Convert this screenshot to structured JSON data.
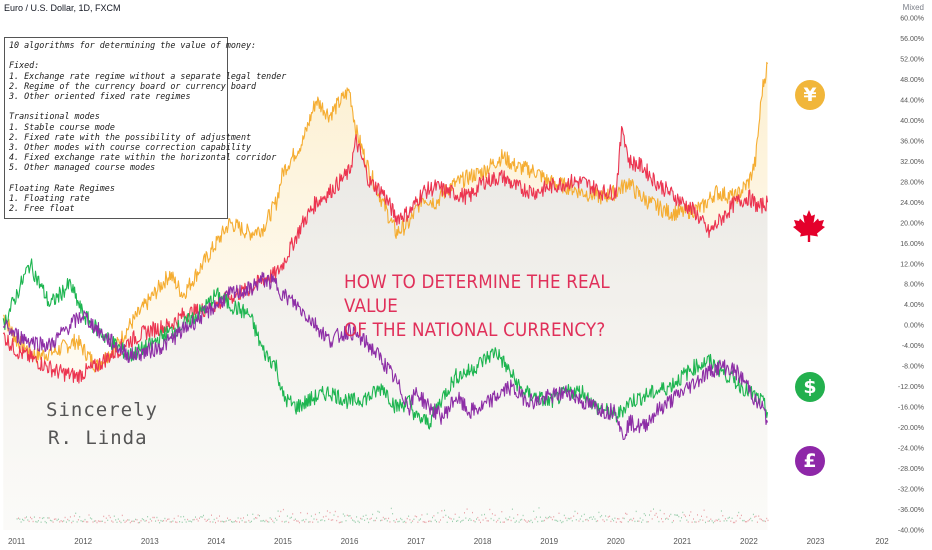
{
  "header": {
    "symbol_title": "Euro / U.S. Dollar, 1D, FXCM",
    "scale_mode": "Mixed"
  },
  "info_box": {
    "lines": [
      "10 algorithms for determining the value of money:",
      "",
      "Fixed:",
      "1. Exchange rate regime without a separate legal tender",
      "2. Regime of the currency board or currency board",
      "3. Other oriented fixed rate regimes",
      "",
      "Transitional modes",
      "1. Stable course mode",
      "2. Fixed rate with the possibility of adjustment",
      "3. Other modes with course correction capability",
      "4. Fixed exchange rate within the horizontal corridor",
      "5. Other managed course modes",
      "",
      "Floating Rate Regimes",
      "1. Floating rate",
      "2. Free float"
    ]
  },
  "headline": {
    "line1": "HOW TO DETERMINE THE REAL VALUE",
    "line2": "OF THE NATIONAL CURRENCY?"
  },
  "signature": {
    "line1": "Sincerely",
    "line2": "R. Linda"
  },
  "icons": {
    "yen": {
      "name": "yen-icon",
      "glyph": "¥",
      "color": "#f1b63a"
    },
    "cad": {
      "name": "maple-leaf-icon",
      "color": "#e4002b"
    },
    "usd": {
      "name": "dollar-icon",
      "glyph": "$",
      "color": "#23b04e"
    },
    "gbp": {
      "name": "pound-icon",
      "glyph": "£",
      "color": "#8e27a8"
    }
  },
  "chart_data": {
    "type": "line",
    "title": "Euro / U.S. Dollar, 1D, FXCM",
    "ylabel": "",
    "xlabel": "",
    "y_unit": "%",
    "ylim": [
      -40,
      60
    ],
    "yticks": [
      "60.00%",
      "56.00%",
      "52.00%",
      "48.00%",
      "44.00%",
      "40.00%",
      "36.00%",
      "32.00%",
      "28.00%",
      "24.00%",
      "20.00%",
      "16.00%",
      "12.00%",
      "8.00%",
      "4.00%",
      "0.00%",
      "-4.00%",
      "-8.00%",
      "-12.00%",
      "-16.00%",
      "-20.00%",
      "-24.00%",
      "-28.00%",
      "-32.00%",
      "-36.00%",
      "-40.00%"
    ],
    "xticks": [
      "2011",
      "2012",
      "2013",
      "2014",
      "2015",
      "2016",
      "2017",
      "2018",
      "2019",
      "2020",
      "2021",
      "2022",
      "2023",
      "202"
    ],
    "xlim": [
      2010.75,
      2024.3
    ],
    "grid": false,
    "series": [
      {
        "color": "#f5ad32",
        "x": [
          2010.8,
          2011.0,
          2011.3,
          2011.6,
          2011.9,
          2012.2,
          2012.5,
          2012.7,
          2013.0,
          2013.3,
          2013.5,
          2013.8,
          2014.0,
          2014.2,
          2014.5,
          2014.7,
          2014.9,
          2015.0,
          2015.3,
          2015.5,
          2015.7,
          2016.0,
          2016.1,
          2016.3,
          2016.5,
          2016.7,
          2016.9,
          2017.1,
          2017.3,
          2017.5,
          2017.8,
          2018.0,
          2018.3,
          2018.5,
          2018.8,
          2019.0,
          2019.3,
          2019.5,
          2019.8,
          2020.0,
          2020.2,
          2020.3,
          2020.5,
          2020.8,
          2021.0,
          2021.3,
          2021.5,
          2021.8,
          2022.0,
          2022.1,
          2022.2,
          2022.28
        ],
        "y": [
          2,
          -3,
          -6,
          -5,
          -3,
          -8,
          -4,
          0,
          5,
          10,
          6,
          12,
          16,
          20,
          18,
          19,
          24,
          30,
          36,
          44,
          41,
          46,
          38,
          30,
          24,
          18,
          20,
          25,
          24,
          27,
          29,
          30,
          33,
          31,
          30,
          28,
          27,
          26,
          25,
          26,
          28,
          26,
          24,
          22,
          22,
          23,
          26,
          25,
          28,
          32,
          46,
          51
        ]
      },
      {
        "color": "#ec3450",
        "x": [
          2010.8,
          2011.0,
          2011.3,
          2011.6,
          2011.9,
          2012.2,
          2012.5,
          2012.7,
          2013.0,
          2013.3,
          2013.5,
          2013.8,
          2014.0,
          2014.3,
          2014.5,
          2014.7,
          2014.9,
          2015.0,
          2015.3,
          2015.5,
          2015.7,
          2016.0,
          2016.1,
          2016.3,
          2016.5,
          2016.7,
          2016.9,
          2017.1,
          2017.3,
          2017.5,
          2017.8,
          2018.0,
          2018.3,
          2018.5,
          2018.8,
          2019.0,
          2019.3,
          2019.5,
          2019.8,
          2020.0,
          2020.1,
          2020.2,
          2020.4,
          2020.6,
          2020.8,
          2021.0,
          2021.2,
          2021.4,
          2021.6,
          2021.8,
          2022.0,
          2022.15,
          2022.28
        ],
        "y": [
          -2,
          -5,
          -7,
          -9,
          -10,
          -8,
          -5,
          -3,
          -1,
          0,
          2,
          3,
          4,
          6,
          7,
          9,
          10,
          12,
          20,
          24,
          26,
          30,
          36,
          28,
          26,
          21,
          22,
          26,
          27,
          26,
          25,
          28,
          29,
          27,
          26,
          27,
          28,
          28,
          26,
          26,
          39,
          32,
          31,
          28,
          26,
          24,
          22,
          18,
          21,
          24,
          25,
          23,
          24
        ]
      },
      {
        "color": "#1db550",
        "x": [
          2010.8,
          2011.0,
          2011.2,
          2011.5,
          2011.8,
          2012.0,
          2012.3,
          2012.5,
          2012.7,
          2013.0,
          2013.2,
          2013.5,
          2013.8,
          2014.0,
          2014.2,
          2014.5,
          2014.7,
          2014.9,
          2015.0,
          2015.2,
          2015.5,
          2015.7,
          2016.0,
          2016.3,
          2016.5,
          2016.7,
          2016.9,
          2017.0,
          2017.2,
          2017.4,
          2017.6,
          2017.8,
          2018.0,
          2018.2,
          2018.4,
          2018.6,
          2018.8,
          2019.0,
          2019.3,
          2019.5,
          2019.7,
          2019.9,
          2020.0,
          2020.2,
          2020.4,
          2020.6,
          2020.8,
          2021.0,
          2021.2,
          2021.4,
          2021.6,
          2021.8,
          2022.0,
          2022.1,
          2022.2,
          2022.28
        ],
        "y": [
          0,
          6,
          12,
          4,
          8,
          2,
          -2,
          -4,
          -6,
          -4,
          -2,
          0,
          3,
          6,
          4,
          2,
          -5,
          -8,
          -14,
          -16,
          -14,
          -13,
          -15,
          -14,
          -12,
          -16,
          -15,
          -18,
          -19,
          -14,
          -10,
          -9,
          -7,
          -5,
          -9,
          -13,
          -14,
          -15,
          -13,
          -13,
          -16,
          -17,
          -18,
          -15,
          -14,
          -13,
          -12,
          -10,
          -8,
          -7,
          -9,
          -11,
          -13,
          -14,
          -15,
          -17
        ]
      },
      {
        "color": "#8d2ea6",
        "x": [
          2010.8,
          2011.0,
          2011.2,
          2011.5,
          2011.8,
          2012.0,
          2012.3,
          2012.5,
          2012.7,
          2013.0,
          2013.2,
          2013.5,
          2013.8,
          2014.0,
          2014.2,
          2014.5,
          2014.7,
          2014.9,
          2015.0,
          2015.2,
          2015.5,
          2015.7,
          2016.0,
          2016.3,
          2016.5,
          2016.7,
          2016.9,
          2017.0,
          2017.2,
          2017.4,
          2017.6,
          2017.8,
          2018.0,
          2018.2,
          2018.4,
          2018.6,
          2018.8,
          2019.0,
          2019.3,
          2019.5,
          2019.7,
          2019.9,
          2020.0,
          2020.1,
          2020.2,
          2020.4,
          2020.6,
          2020.8,
          2021.0,
          2021.2,
          2021.4,
          2021.6,
          2021.8,
          2022.0,
          2022.1,
          2022.2,
          2022.28
        ],
        "y": [
          0,
          -2,
          -3,
          -4,
          0,
          2,
          -2,
          -4,
          -6,
          -5,
          -4,
          -1,
          2,
          4,
          6,
          7,
          9,
          8,
          6,
          4,
          0,
          -3,
          -1,
          -4,
          -7,
          -11,
          -16,
          -13,
          -16,
          -18,
          -14,
          -17,
          -16,
          -14,
          -12,
          -14,
          -15,
          -14,
          -13,
          -15,
          -16,
          -17,
          -16,
          -22,
          -19,
          -20,
          -17,
          -15,
          -13,
          -11,
          -9,
          -8,
          -9,
          -12,
          -15,
          -16,
          -19
        ]
      }
    ]
  }
}
